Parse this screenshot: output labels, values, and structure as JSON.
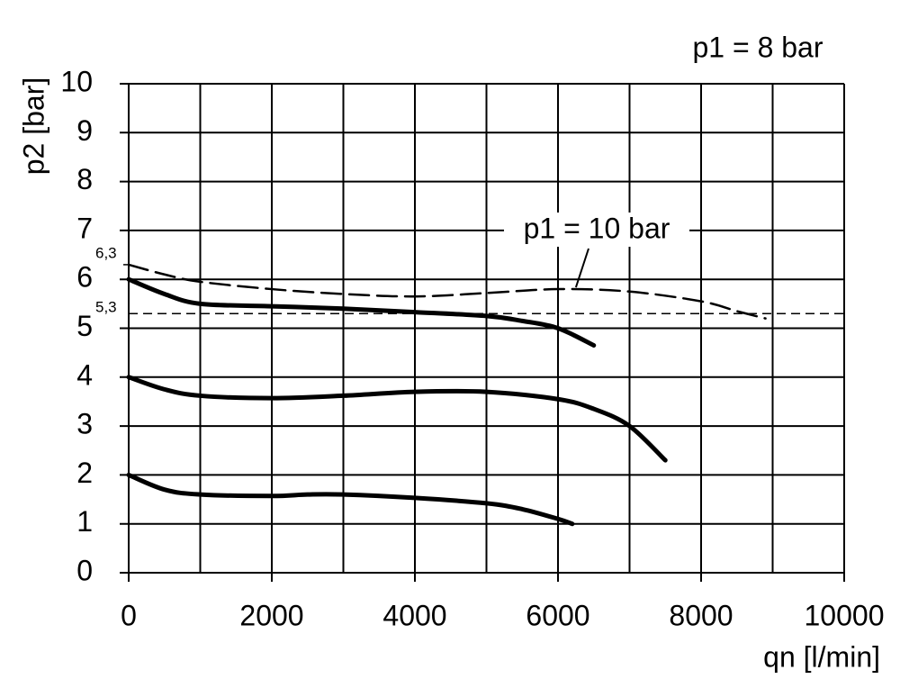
{
  "chart_data": {
    "type": "line",
    "title": "p1 = 8 bar",
    "x_label": "qn [l/min]",
    "y_label": "p2 [bar]",
    "xlim": [
      0,
      10000
    ],
    "ylim": [
      0,
      10
    ],
    "xticks": [
      0,
      2000,
      4000,
      6000,
      8000,
      10000
    ],
    "xgrid": [
      0,
      1000,
      2000,
      3000,
      4000,
      5000,
      6000,
      7000,
      8000,
      9000,
      10000
    ],
    "yticks": [
      0,
      1,
      2,
      3,
      4,
      5,
      6,
      7,
      8,
      9,
      10
    ],
    "grid": true,
    "series": [
      {
        "color": "#000000",
        "style": "solid",
        "x": [
          0,
          500,
          1000,
          2000,
          3000,
          4000,
          5000,
          5500,
          6000,
          6500
        ],
        "values": [
          6.0,
          5.7,
          5.5,
          5.45,
          5.4,
          5.33,
          5.25,
          5.15,
          5.0,
          4.65
        ]
      },
      {
        "color": "#000000",
        "style": "solid",
        "x": [
          0,
          500,
          1000,
          2000,
          3000,
          4000,
          5000,
          6000,
          6500,
          7000,
          7500
        ],
        "values": [
          4.0,
          3.75,
          3.62,
          3.57,
          3.62,
          3.7,
          3.7,
          3.55,
          3.35,
          3.0,
          2.3
        ]
      },
      {
        "color": "#000000",
        "style": "solid",
        "x": [
          0,
          500,
          1000,
          2000,
          2500,
          3000,
          4000,
          5000,
          5500,
          6000,
          6200
        ],
        "values": [
          2.0,
          1.7,
          1.6,
          1.57,
          1.6,
          1.6,
          1.53,
          1.42,
          1.3,
          1.1,
          1.0
        ]
      },
      {
        "color": "#000000",
        "style": "dashed",
        "x": [
          0,
          500,
          1000,
          2000,
          3000,
          4000,
          5000,
          6000,
          7000,
          8000,
          8500,
          8900
        ],
        "values": [
          6.3,
          6.1,
          5.95,
          5.8,
          5.7,
          5.65,
          5.72,
          5.8,
          5.75,
          5.55,
          5.35,
          5.2
        ]
      }
    ],
    "reference_lines": [
      {
        "value": 5.3,
        "label": "5,3"
      }
    ],
    "y_marks": [
      {
        "value": 6.3,
        "label": "6,3"
      }
    ],
    "annotations": [
      {
        "text": "p1 = 10 bar",
        "x": 6200,
        "y": 5.8
      }
    ]
  }
}
